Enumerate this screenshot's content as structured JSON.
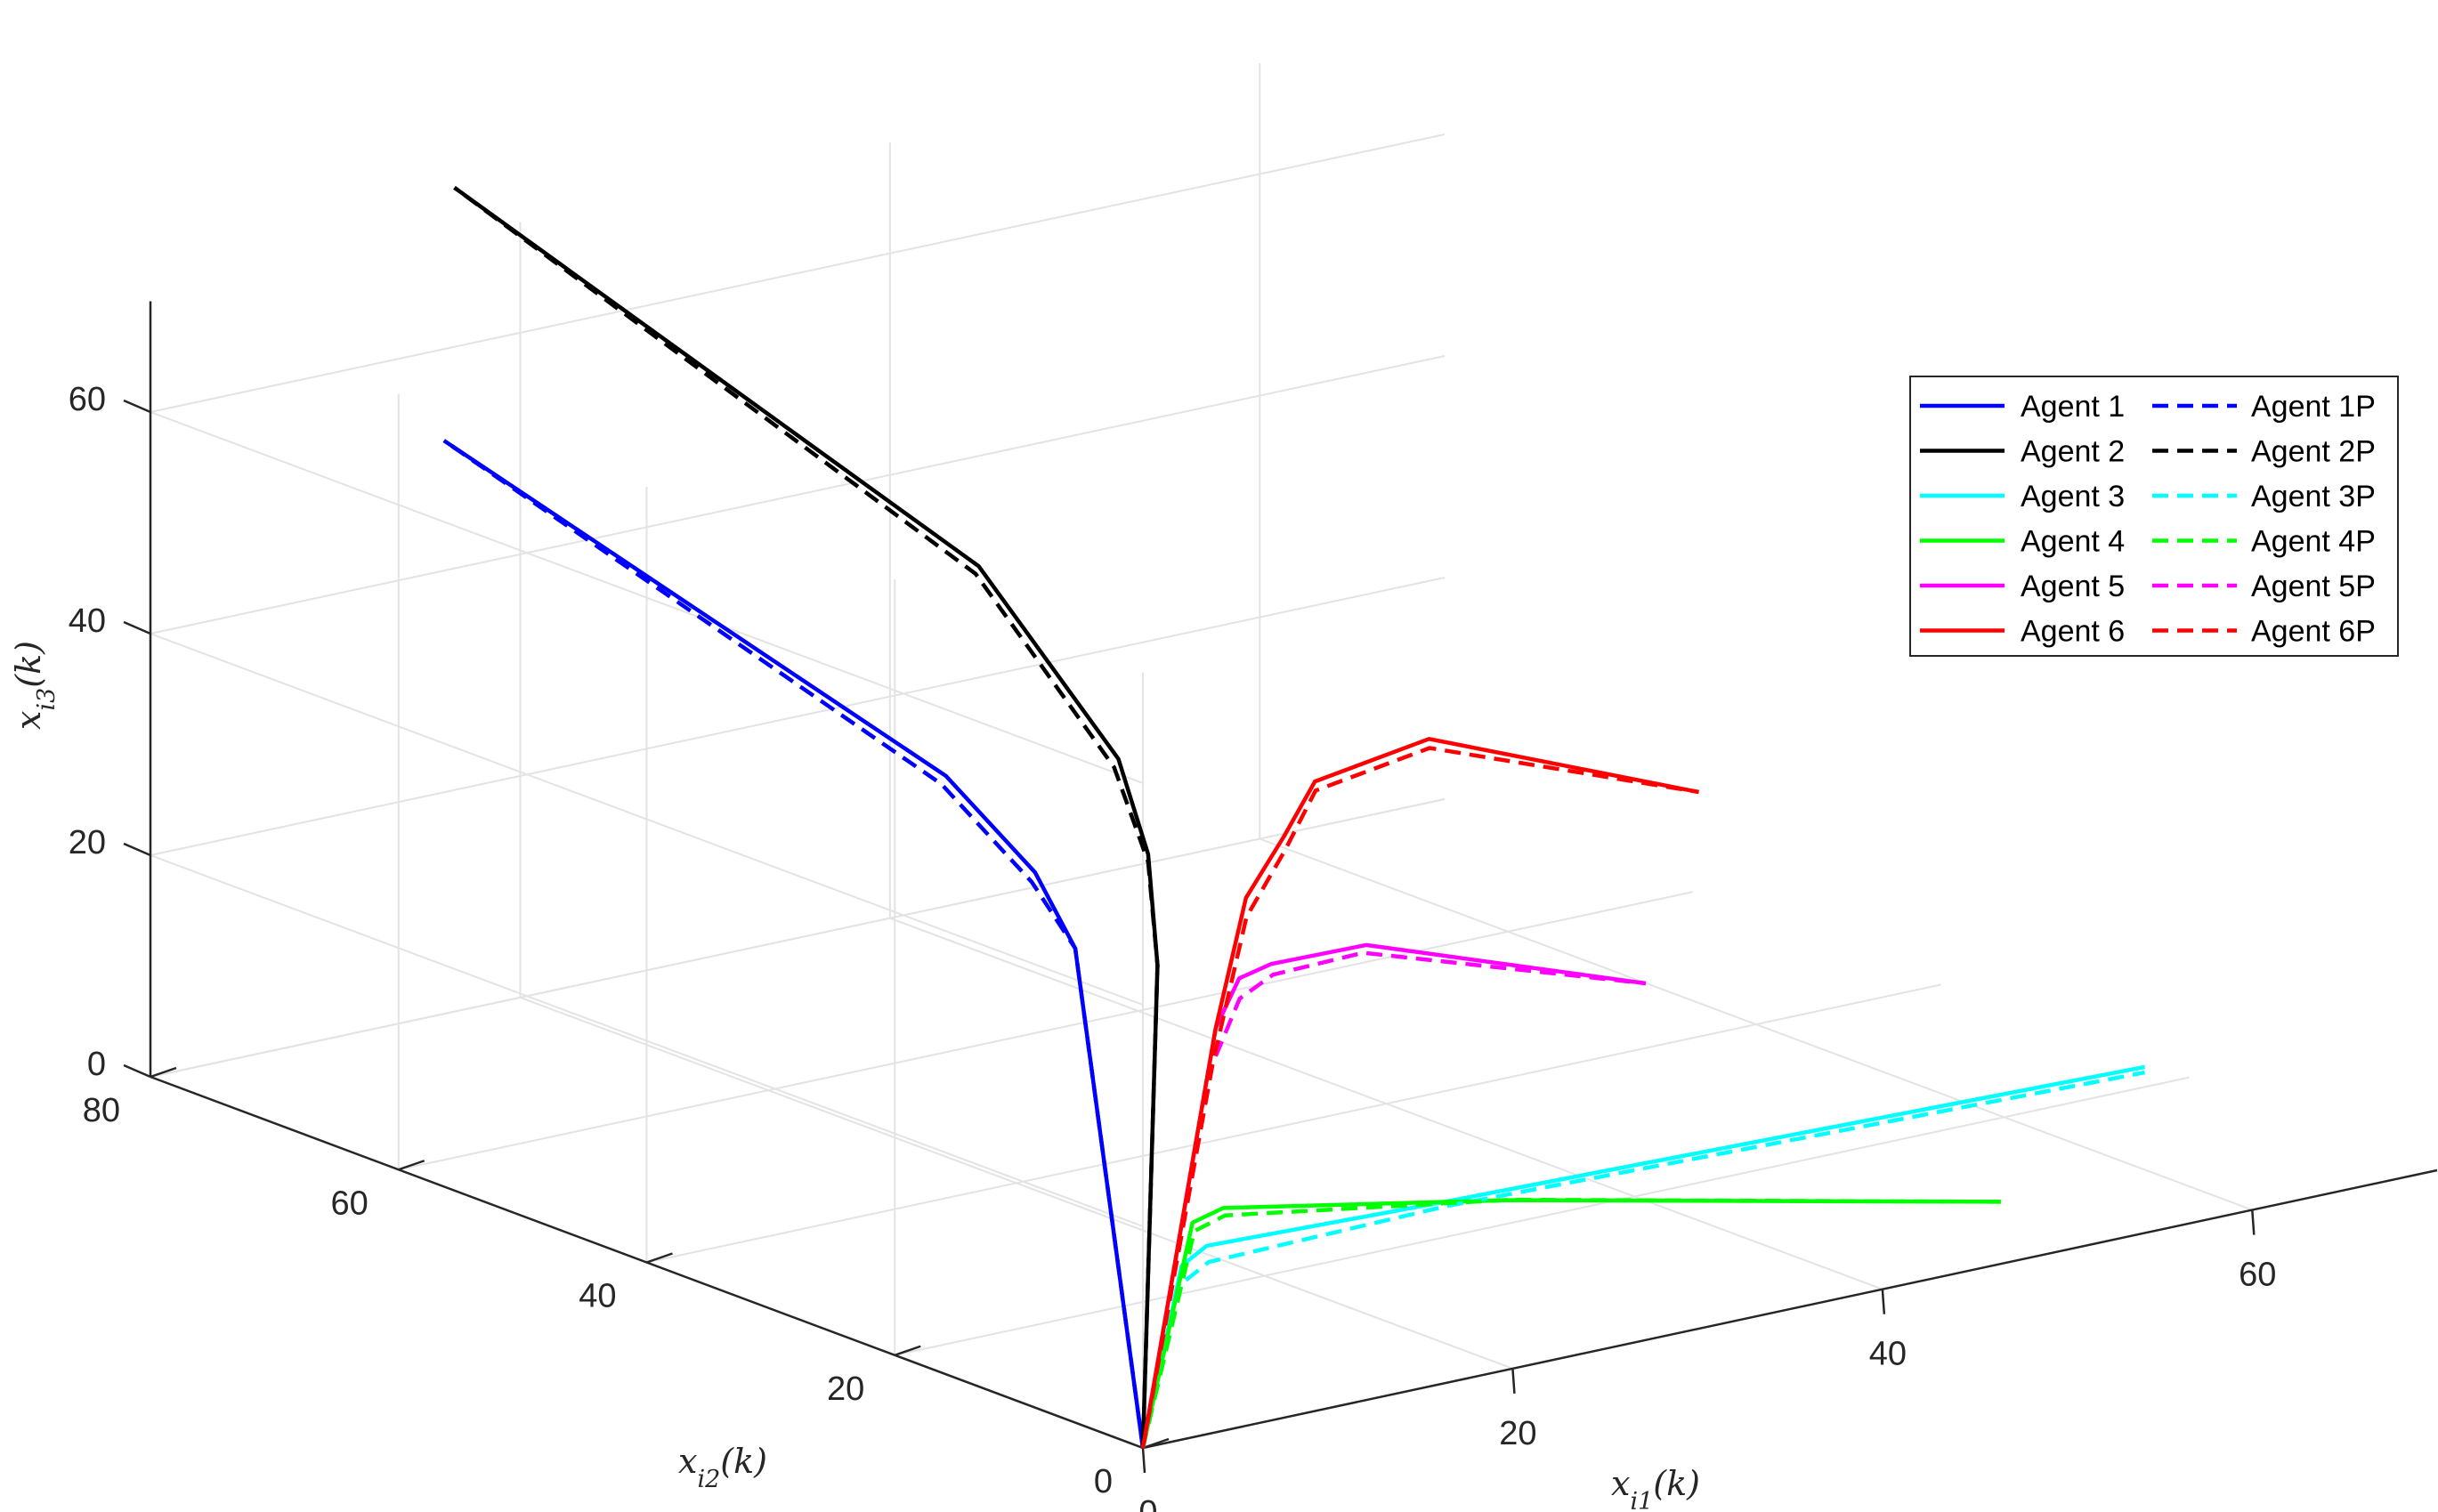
{
  "chart_data": {
    "type": "line3d",
    "title": "",
    "xlabel": "x_{i1}(k)",
    "ylabel": "x_{i2}(k)",
    "zlabel": "x_{i3}(k)",
    "xlim": [
      0,
      70
    ],
    "ylim": [
      0,
      80
    ],
    "zlim": [
      0,
      70
    ],
    "xticks": [
      "0",
      "20",
      "40",
      "60"
    ],
    "yticks": [
      "0",
      "20",
      "40",
      "60",
      "80"
    ],
    "zticks": [
      "0",
      "20",
      "40",
      "60"
    ],
    "grid": true,
    "legend_position": "top-right",
    "series": [
      {
        "name": "Agent 1",
        "color": "#0000ff",
        "dash": false,
        "points": [
          [
            0,
            0,
            0
          ],
          [
            5.6,
            13.8,
            37.3
          ],
          [
            5.1,
            16.3,
            43.3
          ],
          [
            4.7,
            22.9,
            49.4
          ],
          [
            4.2,
            62.6,
            63.2
          ]
        ]
      },
      {
        "name": "Agent 2",
        "color": "#000000",
        "dash": false,
        "points": [
          [
            0,
            0,
            0
          ],
          [
            7.7,
            10.3,
            36.5
          ],
          [
            7.8,
            11.2,
            46.1
          ],
          [
            7.8,
            13.6,
            53.7
          ],
          [
            8.7,
            26.2,
            65.5
          ],
          [
            10.4,
            71.0,
            80.3
          ]
        ]
      },
      {
        "name": "Agent 3",
        "color": "#00ffff",
        "dash": false,
        "points": [
          [
            0,
            0,
            0
          ],
          [
            4.3,
            3.3,
            13.5
          ],
          [
            6.0,
            3.8,
            14.5
          ],
          [
            18.7,
            3.6,
            14.0
          ],
          [
            55.6,
            2.1,
            13.6
          ]
        ]
      },
      {
        "name": "Agent 4",
        "color": "#00ff00",
        "dash": false,
        "points": [
          [
            0,
            0,
            0
          ],
          [
            5.5,
            4.2,
            16.6
          ],
          [
            7.3,
            4.4,
            17.2
          ],
          [
            21.6,
            2.7,
            13.5
          ],
          [
            46.0,
            -0.6,
            6.0
          ]
        ]
      },
      {
        "name": "Agent 5",
        "color": "#ff00ff",
        "dash": false,
        "points": [
          [
            0,
            0,
            0
          ],
          [
            8.1,
            6.2,
            32.4
          ],
          [
            9.3,
            6.1,
            36.5
          ],
          [
            10.5,
            5.3,
            37.7
          ],
          [
            15.3,
            4.8,
            37.9
          ],
          [
            28.0,
            1.2,
            31.4
          ]
        ]
      },
      {
        "name": "Agent 6",
        "color": "#ff0000",
        "dash": false,
        "points": [
          [
            0,
            0,
            0
          ],
          [
            8.1,
            6.2,
            32.4
          ],
          [
            9.8,
            6.3,
            43.5
          ],
          [
            11.6,
            5.9,
            48.6
          ],
          [
            13.4,
            6.1,
            52.8
          ],
          [
            19.3,
            5.7,
            54.7
          ],
          [
            30.2,
            0.2,
            48.3
          ]
        ]
      },
      {
        "name": "Agent 1P",
        "color": "#0000ff",
        "dash": true,
        "points": [
          [
            0,
            0,
            0
          ],
          [
            5.6,
            13.8,
            37.3
          ],
          [
            5.0,
            16.4,
            42.4
          ],
          [
            4.6,
            23.1,
            48.6
          ],
          [
            4.2,
            62.6,
            63.2
          ]
        ]
      },
      {
        "name": "Agent 2P",
        "color": "#000000",
        "dash": true,
        "points": [
          [
            0,
            0,
            0
          ],
          [
            7.7,
            10.3,
            36.5
          ],
          [
            7.8,
            11.2,
            45.4
          ],
          [
            7.7,
            13.8,
            52.9
          ],
          [
            8.6,
            26.3,
            64.8
          ],
          [
            10.4,
            71.0,
            80.3
          ]
        ]
      },
      {
        "name": "Agent 3P",
        "color": "#00ffff",
        "dash": true,
        "points": [
          [
            0,
            0,
            0
          ],
          [
            4.3,
            3.3,
            11.9
          ],
          [
            6.1,
            3.8,
            13.0
          ],
          [
            18.8,
            3.7,
            13.5
          ],
          [
            55.6,
            2.1,
            13.1
          ]
        ]
      },
      {
        "name": "Agent 4P",
        "color": "#00ff00",
        "dash": true,
        "points": [
          [
            0,
            0,
            0
          ],
          [
            5.6,
            4.2,
            15.8
          ],
          [
            7.4,
            4.4,
            16.5
          ],
          [
            21.7,
            2.7,
            13.5
          ],
          [
            46.0,
            -0.6,
            6.0
          ]
        ]
      },
      {
        "name": "Agent 5P",
        "color": "#ff00ff",
        "dash": true,
        "points": [
          [
            0,
            0,
            0
          ],
          [
            8.0,
            6.3,
            29.2
          ],
          [
            9.4,
            6.2,
            34.6
          ],
          [
            10.6,
            5.3,
            36.7
          ],
          [
            15.2,
            4.9,
            37.2
          ],
          [
            28.0,
            1.2,
            31.4
          ]
        ]
      },
      {
        "name": "Agent 6P",
        "color": "#ff0000",
        "dash": true,
        "points": [
          [
            0,
            0,
            0
          ],
          [
            8.0,
            6.3,
            29.2
          ],
          [
            9.9,
            6.4,
            41.7
          ],
          [
            11.7,
            6.0,
            47.2
          ],
          [
            13.5,
            6.2,
            51.9
          ],
          [
            19.4,
            5.8,
            53.8
          ],
          [
            30.2,
            0.2,
            48.3
          ]
        ]
      }
    ]
  }
}
